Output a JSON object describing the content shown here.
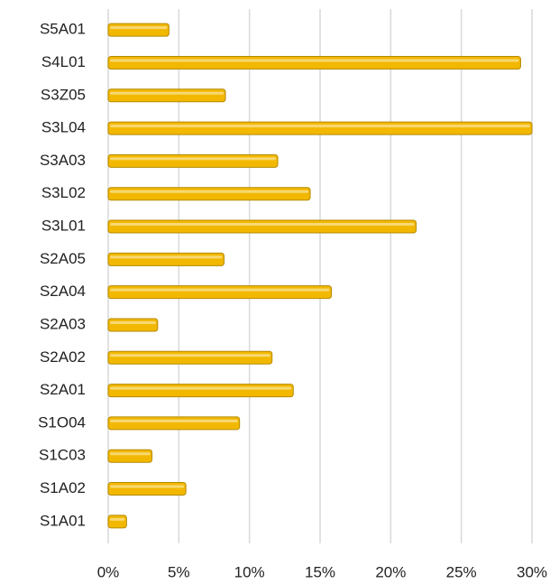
{
  "chart_data": {
    "type": "bar",
    "orientation": "horizontal",
    "categories": [
      "S5A01",
      "S4L01",
      "S3Z05",
      "S3L04",
      "S3A03",
      "S3L02",
      "S3L01",
      "S2A05",
      "S2A04",
      "S2A03",
      "S2A02",
      "S2A01",
      "S1O04",
      "S1C03",
      "S1A02",
      "S1A01"
    ],
    "values": [
      4.3,
      29.2,
      8.3,
      30.0,
      12.0,
      14.3,
      21.8,
      8.2,
      15.8,
      3.5,
      11.6,
      13.1,
      9.3,
      3.1,
      5.5,
      1.3
    ],
    "color": "#f2b800",
    "xlim": [
      0,
      30
    ],
    "xticks": [
      {
        "value": 0,
        "label": "0%"
      },
      {
        "value": 5,
        "label": "5%"
      },
      {
        "value": 10,
        "label": "10%"
      },
      {
        "value": 15,
        "label": "15%"
      },
      {
        "value": 20,
        "label": "20%"
      },
      {
        "value": 25,
        "label": "25%"
      },
      {
        "value": 30,
        "label": "30%"
      }
    ],
    "grid": true
  }
}
